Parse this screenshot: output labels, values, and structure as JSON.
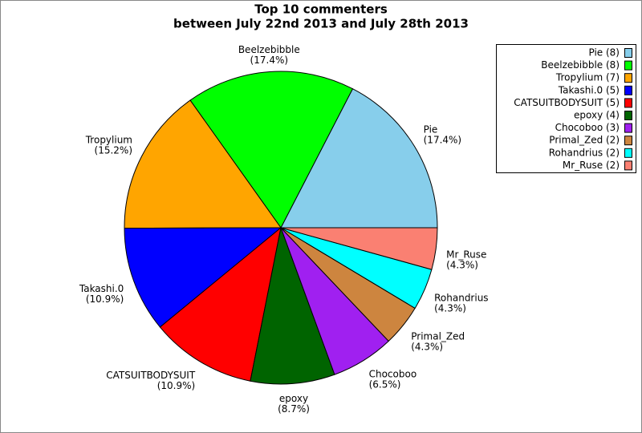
{
  "chart_data": {
    "type": "pie",
    "title": "Top 10 commenters",
    "subtitle": "between July 22nd 2013 and July 28th 2013",
    "categories": [
      "Pie",
      "Beelzebibble",
      "Tropylium",
      "Takashi.0",
      "CATSUITBODYSUIT",
      "epoxy",
      "Chocoboo",
      "Primal_Zed",
      "Rohandrius",
      "Mr_Ruse"
    ],
    "values": [
      17.4,
      17.4,
      15.2,
      10.9,
      10.9,
      8.7,
      6.5,
      4.3,
      4.3,
      4.3
    ],
    "value_labels": [
      "(17.4%)",
      "(17.4%)",
      "(15.2%)",
      "(10.9%)",
      "(10.9%)",
      "(8.7%)",
      "(6.5%)",
      "(4.3%)",
      "(4.3%)",
      "(4.3%)"
    ],
    "legend_labels": [
      "Pie (8)",
      "Beelzebibble (8)",
      "Tropylium (7)",
      "Takashi.0 (5)",
      "CATSUITBODYSUIT (5)",
      "epoxy (4)",
      "Chocoboo (3)",
      "Primal_Zed (2)",
      "Rohandrius (2)",
      "Mr_Ruse (2)"
    ],
    "colors": [
      "#87ceeb",
      "#00ff00",
      "#ffa500",
      "#0000ff",
      "#ff0000",
      "#006400",
      "#a020f0",
      "#cd853f",
      "#00ffff",
      "#fa8072"
    ],
    "legend": "upper right"
  }
}
